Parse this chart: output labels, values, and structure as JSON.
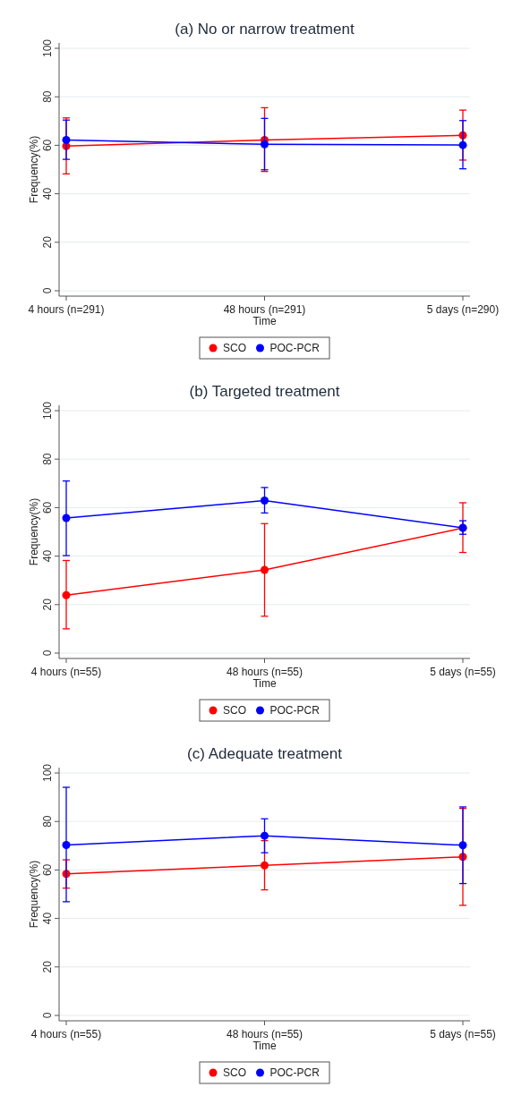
{
  "chart_data": [
    {
      "type": "line",
      "title": "(a) No or narrow treatment",
      "xlabel": "Time",
      "ylabel": "Frequency(%)",
      "categories": [
        "4 hours (n=291)",
        "48 hours (n=291)",
        "5 days (n=290)"
      ],
      "ylim": [
        0,
        100
      ],
      "yticks": [
        0,
        20,
        40,
        60,
        80,
        100
      ],
      "grid": "y",
      "legend": "bottom",
      "marker": "circle",
      "series": [
        {
          "name": "SCO",
          "color": "#ff0000",
          "values": [
            59.7,
            62.2,
            64.1
          ],
          "errors": [
            [
              48.2,
              71.3
            ],
            [
              49.2,
              75.5
            ],
            [
              53.9,
              74.5
            ]
          ]
        },
        {
          "name": "POC-PCR",
          "color": "#0000ff",
          "values": [
            62.2,
            60.4,
            60.1
          ],
          "errors": [
            [
              54.2,
              70.4
            ],
            [
              49.9,
              71.1
            ],
            [
              50.3,
              70.2
            ]
          ]
        }
      ]
    },
    {
      "type": "line",
      "title": "(b) Targeted treatment",
      "xlabel": "Time",
      "ylabel": "Frequency(%)",
      "categories": [
        "4 hours (n=55)",
        "48 hours (n=55)",
        "5 days (n=55)"
      ],
      "ylim": [
        0,
        100
      ],
      "yticks": [
        0,
        20,
        40,
        60,
        80,
        100
      ],
      "grid": "y",
      "legend": "bottom",
      "marker": "circle",
      "series": [
        {
          "name": "SCO",
          "color": "#ff0000",
          "values": [
            23.9,
            34.3,
            51.6
          ],
          "errors": [
            [
              10.0,
              38.2
            ],
            [
              15.2,
              53.4
            ],
            [
              41.5,
              62.0
            ]
          ]
        },
        {
          "name": "POC-PCR",
          "color": "#0000ff",
          "values": [
            55.7,
            62.9,
            51.7
          ],
          "errors": [
            [
              40.2,
              71.0
            ],
            [
              57.8,
              68.3
            ],
            [
              49.0,
              54.6
            ]
          ]
        }
      ]
    },
    {
      "type": "line",
      "title": "(c) Adequate treatment",
      "xlabel": "Time",
      "ylabel": "Frequency(%)",
      "categories": [
        "4 hours (n=55)",
        "48 hours (n=55)",
        "5 days (n=55)"
      ],
      "ylim": [
        0,
        100
      ],
      "yticks": [
        0,
        20,
        40,
        60,
        80,
        100
      ],
      "grid": "y",
      "legend": "bottom",
      "marker": "circle",
      "series": [
        {
          "name": "SCO",
          "color": "#ff0000",
          "values": [
            58.4,
            61.9,
            65.4
          ],
          "errors": [
            [
              52.5,
              64.2
            ],
            [
              51.8,
              72.1
            ],
            [
              45.4,
              85.4
            ]
          ]
        },
        {
          "name": "POC-PCR",
          "color": "#0000ff",
          "values": [
            70.3,
            74.1,
            70.2
          ],
          "errors": [
            [
              46.9,
              94.1
            ],
            [
              67.1,
              81.1
            ],
            [
              54.4,
              86.0
            ]
          ]
        }
      ]
    }
  ]
}
